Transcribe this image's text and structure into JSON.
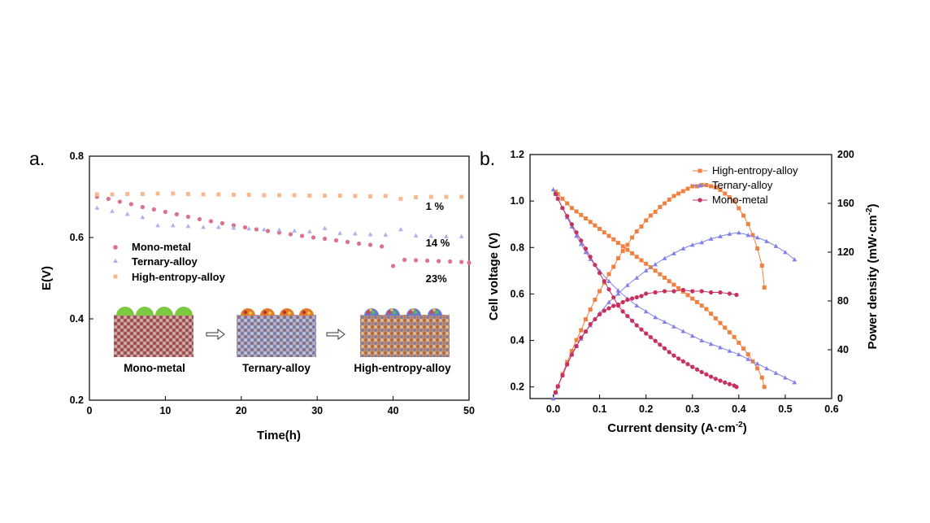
{
  "panels": [
    {
      "panel_label": "a.",
      "type": "scatter",
      "xlabel": "Time(h)",
      "ylabel": "E(V)",
      "xlim": [
        0,
        50
      ],
      "ylim": [
        0.2,
        0.8
      ],
      "xticks": [
        "0",
        "10",
        "20",
        "30",
        "40",
        "50"
      ],
      "yticks": [
        "0.2",
        "0.4",
        "0.6",
        "0.8"
      ],
      "legend_position": "middle-left",
      "series": [
        {
          "name": "Mono-metal",
          "marker": "circle",
          "color": "#e0708c",
          "x": [
            1,
            2.5,
            4,
            5.5,
            7,
            8.5,
            10,
            11.5,
            13,
            14.5,
            16,
            17.5,
            19,
            20.5,
            22,
            23.5,
            25,
            26.5,
            28,
            29.5,
            31,
            32.5,
            34,
            35.5,
            37,
            38.5,
            40,
            41.5,
            43,
            44.5,
            46,
            47.5,
            49,
            50
          ],
          "y": [
            0.7,
            0.695,
            0.688,
            0.682,
            0.675,
            0.669,
            0.663,
            0.657,
            0.651,
            0.645,
            0.64,
            0.635,
            0.63,
            0.625,
            0.62,
            0.616,
            0.612,
            0.608,
            0.604,
            0.6,
            0.597,
            0.593,
            0.589,
            0.585,
            0.582,
            0.578,
            0.53,
            0.545,
            0.544,
            0.543,
            0.542,
            0.541,
            0.54,
            0.538
          ]
        },
        {
          "name": "Ternary-alloy",
          "marker": "triangle",
          "color": "#b0b0ee",
          "x": [
            1,
            3,
            5,
            7,
            9,
            11,
            13,
            15,
            17,
            19,
            21,
            23,
            25,
            27,
            29,
            31,
            33,
            35,
            37,
            39,
            41,
            43,
            45,
            47,
            49
          ],
          "y": [
            0.673,
            0.665,
            0.658,
            0.65,
            0.63,
            0.63,
            0.628,
            0.626,
            0.626,
            0.624,
            0.622,
            0.62,
            0.619,
            0.617,
            0.615,
            0.623,
            0.611,
            0.61,
            0.608,
            0.607,
            0.62,
            0.605,
            0.604,
            0.603,
            0.603
          ]
        },
        {
          "name": "High-entropy-alloy",
          "marker": "square",
          "color": "#f8b890",
          "x": [
            1,
            3,
            5,
            7,
            9,
            11,
            13,
            15,
            17,
            19,
            21,
            23,
            25,
            27,
            29,
            31,
            33,
            35,
            37,
            39,
            41,
            43,
            45,
            47,
            49
          ],
          "y": [
            0.706,
            0.706,
            0.707,
            0.707,
            0.708,
            0.708,
            0.707,
            0.706,
            0.706,
            0.705,
            0.705,
            0.704,
            0.704,
            0.704,
            0.703,
            0.703,
            0.703,
            0.702,
            0.701,
            0.702,
            0.695,
            0.699,
            0.7,
            0.7,
            0.7
          ]
        }
      ],
      "annotations": [
        {
          "text": "1 %",
          "x": 46,
          "y": 0.668
        },
        {
          "text": "14 %",
          "x": 46,
          "y": 0.578
        },
        {
          "text": "23%",
          "x": 46,
          "y": 0.49
        }
      ],
      "inset": {
        "stages": [
          "Mono-metal",
          "Ternary-alloy",
          "High-entropy-alloy"
        ]
      }
    },
    {
      "panel_label": "b.",
      "type": "line",
      "xlabel_main": "Current density (A·cm",
      "xlabel_sup": "-2",
      "xlabel_end": ")",
      "ylabel": "Cell voltage (V)",
      "y2label_main": "Power density (mW·cm",
      "y2label_sup": "-2",
      "y2label_end": ")",
      "xlim": [
        -0.05,
        0.6
      ],
      "ylim": [
        0.15,
        1.2
      ],
      "y2lim": [
        0,
        200
      ],
      "xticks": [
        "0.0",
        "0.1",
        "0.2",
        "0.3",
        "0.4",
        "0.5",
        "0.6"
      ],
      "yticks": [
        "0.2",
        "0.4",
        "0.6",
        "0.8",
        "1.0",
        "1.2"
      ],
      "y2ticks": [
        "0",
        "40",
        "80",
        "120",
        "160",
        "200"
      ],
      "legend_position": "top-right",
      "series": [
        {
          "name": "High-entropy-alloy",
          "marker": "square",
          "color": "#f08040",
          "voltage": {
            "x": [
              0.005,
              0.01,
              0.02,
              0.03,
              0.04,
              0.05,
              0.06,
              0.07,
              0.08,
              0.09,
              0.1,
              0.11,
              0.12,
              0.13,
              0.14,
              0.15,
              0.16,
              0.17,
              0.18,
              0.19,
              0.2,
              0.21,
              0.22,
              0.23,
              0.24,
              0.25,
              0.26,
              0.27,
              0.28,
              0.29,
              0.3,
              0.31,
              0.32,
              0.33,
              0.34,
              0.35,
              0.36,
              0.37,
              0.38,
              0.39,
              0.4,
              0.41,
              0.42,
              0.43,
              0.44,
              0.45,
              0.455
            ],
            "y": [
              1.04,
              1.03,
              1.01,
              0.99,
              0.97,
              0.955,
              0.94,
              0.925,
              0.91,
              0.895,
              0.88,
              0.865,
              0.85,
              0.835,
              0.82,
              0.805,
              0.79,
              0.775,
              0.76,
              0.745,
              0.73,
              0.715,
              0.7,
              0.685,
              0.67,
              0.655,
              0.64,
              0.625,
              0.61,
              0.595,
              0.58,
              0.565,
              0.55,
              0.535,
              0.515,
              0.495,
              0.475,
              0.455,
              0.435,
              0.415,
              0.39,
              0.365,
              0.34,
              0.31,
              0.28,
              0.24,
              0.2
            ]
          },
          "power": {
            "x": [
              0.005,
              0.01,
              0.02,
              0.03,
              0.04,
              0.05,
              0.06,
              0.07,
              0.08,
              0.09,
              0.1,
              0.11,
              0.12,
              0.13,
              0.14,
              0.15,
              0.16,
              0.17,
              0.18,
              0.19,
              0.2,
              0.21,
              0.22,
              0.23,
              0.24,
              0.25,
              0.26,
              0.27,
              0.28,
              0.29,
              0.3,
              0.31,
              0.32,
              0.33,
              0.34,
              0.35,
              0.36,
              0.37,
              0.38,
              0.39,
              0.4,
              0.41,
              0.42,
              0.43,
              0.44,
              0.45,
              0.455
            ],
            "y": [
              5,
              10,
              20,
              30,
              39,
              48,
              56,
              65,
              73,
              81,
              88,
              95,
              102,
              108,
              115,
              121,
              126,
              132,
              137,
              141,
              146,
              150,
              153,
              157,
              160,
              163,
              166,
              168,
              170,
              172,
              174,
              174,
              175,
              175,
              174,
              173,
              171,
              168,
              165,
              162,
              156,
              150,
              143,
              134,
              123,
              109,
              91
            ]
          }
        },
        {
          "name": "Ternary-alloy",
          "marker": "triangle",
          "color": "#8080e8",
          "voltage": {
            "x": [
              0.0,
              0.005,
              0.01,
              0.02,
              0.03,
              0.04,
              0.05,
              0.06,
              0.07,
              0.08,
              0.1,
              0.12,
              0.14,
              0.16,
              0.18,
              0.2,
              0.22,
              0.24,
              0.26,
              0.28,
              0.3,
              0.32,
              0.34,
              0.36,
              0.38,
              0.4,
              0.42,
              0.44,
              0.46,
              0.48,
              0.5,
              0.52
            ],
            "y": [
              1.05,
              1.03,
              1.01,
              0.97,
              0.93,
              0.89,
              0.85,
              0.815,
              0.78,
              0.75,
              0.7,
              0.655,
              0.615,
              0.58,
              0.55,
              0.525,
              0.5,
              0.48,
              0.46,
              0.44,
              0.42,
              0.4,
              0.385,
              0.37,
              0.355,
              0.34,
              0.32,
              0.3,
              0.28,
              0.26,
              0.24,
              0.22
            ]
          },
          "power": {
            "x": [
              0.0,
              0.005,
              0.01,
              0.02,
              0.03,
              0.04,
              0.05,
              0.06,
              0.07,
              0.08,
              0.1,
              0.12,
              0.14,
              0.16,
              0.18,
              0.2,
              0.22,
              0.24,
              0.26,
              0.28,
              0.3,
              0.32,
              0.34,
              0.36,
              0.38,
              0.4,
              0.42,
              0.44,
              0.46,
              0.48,
              0.5,
              0.52
            ],
            "y": [
              0,
              5,
              10,
              19,
              28,
              36,
              43,
              49,
              55,
              60,
              70,
              79,
              86,
              93,
              99,
              105,
              110,
              115,
              119,
              123,
              126,
              128,
              131,
              133,
              135,
              136,
              134,
              132,
              129,
              125,
              120,
              114
            ]
          }
        },
        {
          "name": "Mono-metal",
          "marker": "circle",
          "color": "#c83060",
          "voltage": {
            "x": [
              0.005,
              0.01,
              0.02,
              0.03,
              0.04,
              0.05,
              0.06,
              0.07,
              0.08,
              0.09,
              0.1,
              0.11,
              0.12,
              0.13,
              0.14,
              0.15,
              0.16,
              0.17,
              0.18,
              0.19,
              0.2,
              0.21,
              0.22,
              0.23,
              0.24,
              0.25,
              0.26,
              0.27,
              0.28,
              0.29,
              0.3,
              0.31,
              0.32,
              0.33,
              0.34,
              0.35,
              0.36,
              0.37,
              0.38,
              0.39,
              0.395
            ],
            "y": [
              1.03,
              1.01,
              0.97,
              0.935,
              0.9,
              0.865,
              0.83,
              0.795,
              0.76,
              0.725,
              0.69,
              0.655,
              0.62,
              0.585,
              0.55,
              0.525,
              0.505,
              0.485,
              0.465,
              0.447,
              0.43,
              0.414,
              0.398,
              0.382,
              0.366,
              0.35,
              0.335,
              0.322,
              0.31,
              0.298,
              0.286,
              0.275,
              0.264,
              0.254,
              0.244,
              0.235,
              0.227,
              0.219,
              0.212,
              0.206,
              0.2
            ]
          },
          "power": {
            "x": [
              0.005,
              0.01,
              0.02,
              0.03,
              0.04,
              0.05,
              0.06,
              0.07,
              0.08,
              0.09,
              0.1,
              0.11,
              0.12,
              0.13,
              0.14,
              0.15,
              0.16,
              0.17,
              0.18,
              0.19,
              0.2,
              0.22,
              0.24,
              0.26,
              0.28,
              0.3,
              0.32,
              0.34,
              0.36,
              0.38,
              0.395
            ],
            "y": [
              5,
              10,
              19,
              28,
              36,
              43,
              50,
              55,
              61,
              65,
              69,
              72,
              74,
              76,
              77,
              79,
              81,
              82,
              83,
              84,
              86,
              87,
              88,
              88,
              89,
              88,
              88,
              87,
              87,
              86,
              85
            ]
          }
        }
      ]
    }
  ]
}
